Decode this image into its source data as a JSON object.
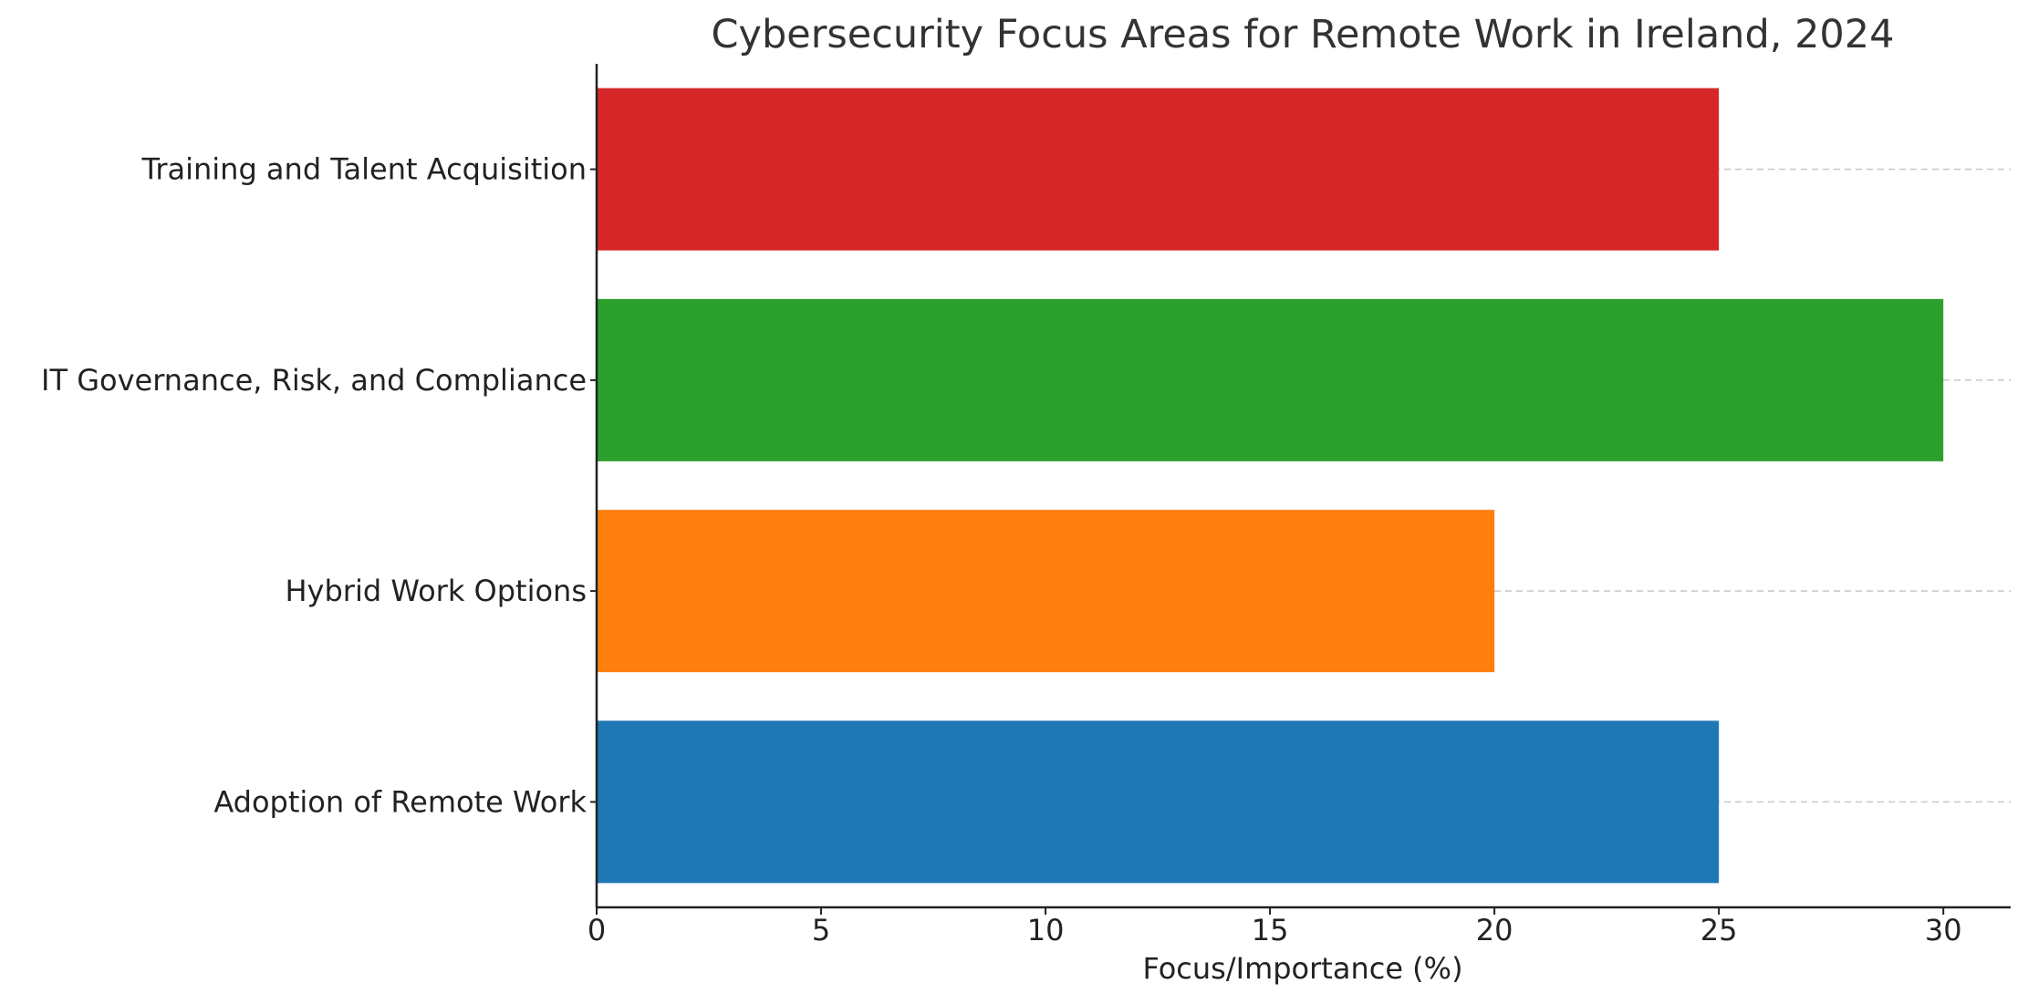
{
  "chart_data": {
    "type": "bar",
    "orientation": "horizontal",
    "title": "Cybersecurity Focus Areas for Remote Work in Ireland, 2024",
    "xlabel": "Focus/Importance (%)",
    "ylabel": "",
    "categories": [
      "Adoption of Remote Work",
      "Hybrid Work Options",
      "IT Governance, Risk, and Compliance",
      "Training and Talent Acquisition"
    ],
    "values": [
      25,
      20,
      30,
      25
    ],
    "colors": [
      "#1f77b4",
      "#ff7f0e",
      "#2ca02c",
      "#d62728"
    ],
    "xlim": [
      0,
      31.5
    ],
    "xticks": [
      0,
      5,
      10,
      15,
      20,
      25,
      30
    ],
    "xtick_labels": [
      "0",
      "5",
      "10",
      "15",
      "20",
      "25",
      "30"
    ],
    "grid": "horizontal dashed",
    "legend": "none"
  }
}
